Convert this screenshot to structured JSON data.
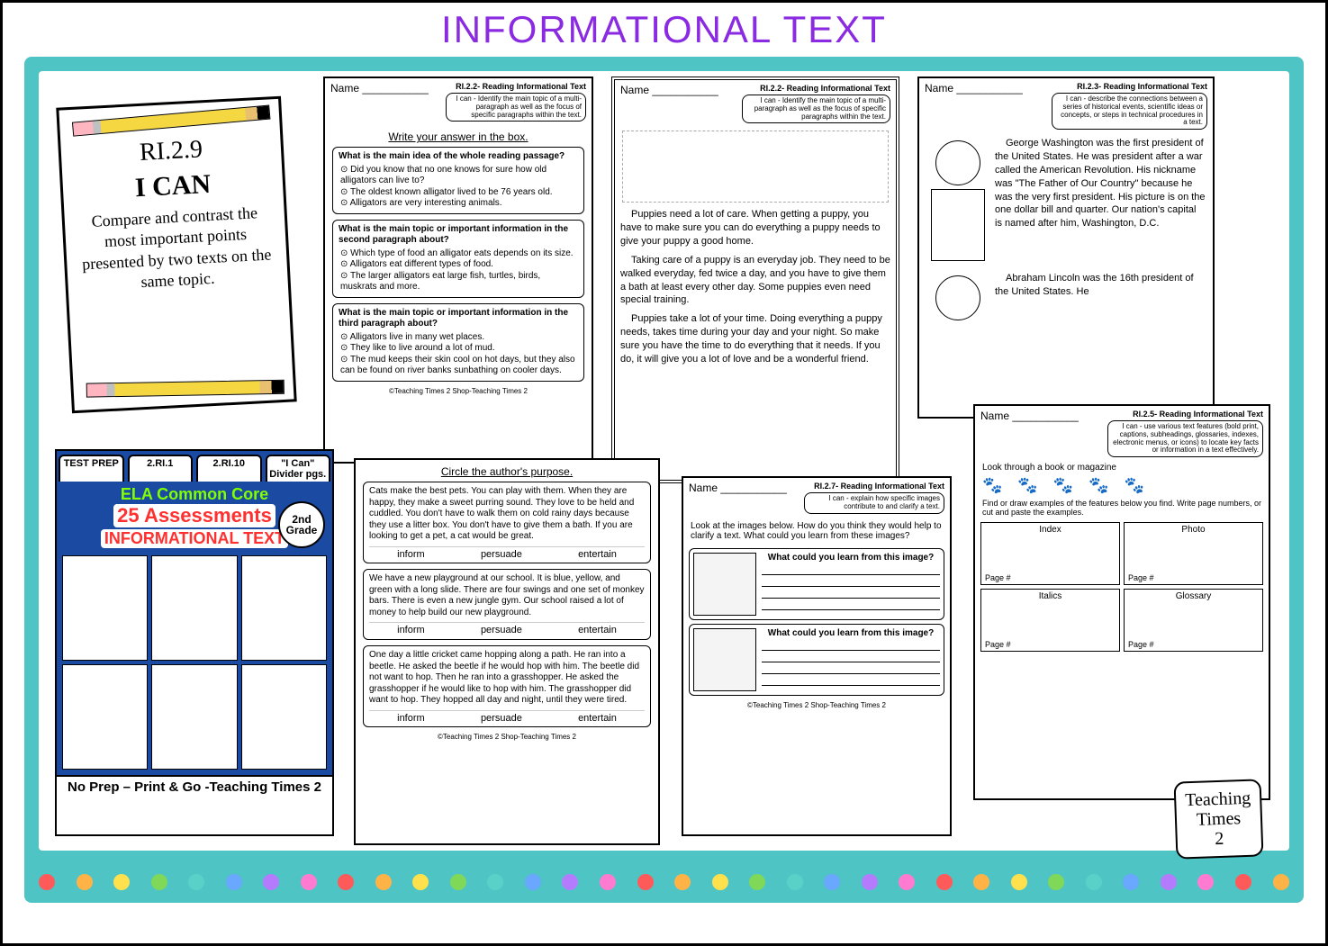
{
  "page_title": "INFORMATIONAL TEXT",
  "colors": {
    "title": "#8a2be2",
    "teal_panel": "#4fc4c4",
    "product_blue": "#1b4aa3",
    "product_green": "#7fff00",
    "product_red": "#ff3030",
    "dot_palette": [
      "#ff5a5a",
      "#ffb347",
      "#ffe14d",
      "#7fd858",
      "#5ad1c8",
      "#6aa7ff",
      "#b57bff",
      "#ff7bd1",
      "#ff5a5a",
      "#ffb347",
      "#ffe14d",
      "#7fd858",
      "#5ad1c8",
      "#6aa7ff",
      "#b57bff",
      "#ff7bd1",
      "#ff5a5a",
      "#ffb347",
      "#ffe14d",
      "#7fd858",
      "#5ad1c8",
      "#6aa7ff",
      "#b57bff",
      "#ff7bd1",
      "#ff5a5a",
      "#ffb347",
      "#ffe14d",
      "#7fd858",
      "#5ad1c8",
      "#6aa7ff",
      "#b57bff",
      "#ff7bd1",
      "#ff5a5a",
      "#ffb347"
    ]
  },
  "poster": {
    "code": "RI.2.9",
    "ican": "I CAN",
    "desc": "Compare and contrast the most important points presented by two texts on the same topic."
  },
  "ws1": {
    "standard": "RI.2.2- Reading Informational Text",
    "ican": "I can - Identify the main topic of a multi-paragraph as well as the focus of specific paragraphs within the text.",
    "name_label": "Name",
    "sub": "Write your answer in the box.",
    "q1": {
      "q": "What is the main idea of the whole reading passage?",
      "opts": [
        "Did you know that no one knows for sure how old alligators can live to?",
        "The oldest known alligator lived to be 76 years old.",
        "Alligators are very interesting animals."
      ]
    },
    "q2": {
      "q": "What is the main topic or important information in the second paragraph about?",
      "opts": [
        "Which type of food an alligator eats depends on its size.",
        "Alligators eat different types of food.",
        "The larger alligators eat large fish, turtles, birds, muskrats and more."
      ]
    },
    "q3": {
      "q": "What is the main topic or important information in the third paragraph about?",
      "opts": [
        "Alligators live in many wet places.",
        "They like to live around a lot of mud.",
        "The mud keeps their skin cool on hot days, but they also can be found on river banks sunbathing on cooler days."
      ]
    },
    "footer": "©Teaching Times 2        Shop-Teaching Times 2"
  },
  "ws2": {
    "standard": "RI.2.2- Reading Informational Text",
    "ican": "I can - Identify the main topic of a multi-paragraph as well as the focus of specific paragraphs within the text.",
    "name_label": "Name",
    "paras": [
      "Puppies need a lot of care. When getting a puppy, you have to make sure you can do everything a puppy needs to give your puppy a good home.",
      "Taking care of a puppy is an everyday job. They need to be walked everyday, fed twice a day, and you have to give them a bath at least every other day. Some puppies even need special training.",
      "Puppies take a lot of your time. Doing everything a puppy needs, takes time during your day and your night. So make sure you have the time to do everything that it needs. If you do, it will give you a lot of love and be a wonderful friend."
    ]
  },
  "ws3": {
    "standard": "RI.2.3- Reading Informational Text",
    "ican": "I can - describe the connections between a series of historical events, scientific ideas or concepts, or steps in technical procedures in a text.",
    "name_label": "Name",
    "p1": "George Washington was the first president of the United States. He was president after a war called the American Revolution. His nickname was \"The Father of Our Country\" because he was the very first president. His picture is on the one dollar bill and quarter. Our nation's capital is named after him, Washington, D.C.",
    "p2": "Abraham Lincoln was the 16th president of the United States. He"
  },
  "ws4": {
    "sub": "Circle the author's purpose.",
    "row_labels": [
      "inform",
      "persuade",
      "entertain"
    ],
    "p1": "Cats make the best pets. You can play with them. When they are happy, they make a sweet purring sound. They love to be held and cuddled. You don't have to walk them on cold rainy days because they use a litter box. You don't have to give them a bath. If you are looking to get a pet, a cat would be great.",
    "p2": "We have a new playground at our school. It is blue, yellow, and green with a long slide. There are four swings and one set of monkey bars. There is even a new jungle gym. Our school raised a lot of money to help build our new playground.",
    "p3": "One day a little cricket came hopping along a path. He ran into a beetle. He asked the beetle if he would hop with him. The beetle did not want to hop. Then he ran into a grasshopper. He asked the grasshopper if he would like to hop with him. The grasshopper did want to hop. They hopped all day and night, until they were tired.",
    "footer": "©Teaching Times 2        Shop-Teaching Times 2"
  },
  "ws5": {
    "standard": "RI.2.7- Reading Informational Text",
    "ican": "I can - explain how specific images contribute to and clarify a text.",
    "name_label": "Name",
    "lead": "Look at the images below. How do you think they would help to clarify a text. What could you learn from these images?",
    "hint": "What could you learn from this image?",
    "footer": "©Teaching Times 2        Shop-Teaching Times 2"
  },
  "ws6": {
    "standard": "RI.2.5- Reading Informational Text",
    "ican": "I can - use various text features (bold print, captions, subheadings, glossaries, indexes, electronic menus, or icons) to locate key facts or information in a text effectively.",
    "name_label": "Name",
    "lead": "Look through a book or magazine",
    "instr": "Find or draw examples of the features below you find. Write page numbers, or cut and paste the examples.",
    "cells": [
      "Index",
      "Photo",
      "Italics",
      "Glossary"
    ],
    "page_label": "Page #"
  },
  "product": {
    "tabs": [
      "TEST PREP",
      "2.RI.1",
      "2.RI.10",
      "\"I Can\" Divider pgs."
    ],
    "ela": "ELA Common Core",
    "n25": "25 Assessments",
    "info": "INFORMATIONAL TEXT",
    "grade": "2nd Grade",
    "bottom": "No Prep – Print & Go -Teaching Times 2"
  },
  "logo": {
    "l1": "Teaching",
    "l2": "Times",
    "l3": "2"
  }
}
